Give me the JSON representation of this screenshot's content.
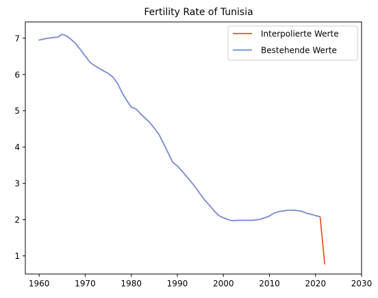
{
  "chart_data": {
    "type": "line",
    "title": "Fertility Rate of Tunisia",
    "xlabel": "",
    "ylabel": "",
    "xlim": [
      1957.0,
      2030.0
    ],
    "ylim": [
      0.5,
      7.45
    ],
    "xticks": [
      1960,
      1970,
      1980,
      1990,
      2000,
      2010,
      2020,
      2030
    ],
    "yticks": [
      1,
      2,
      3,
      4,
      5,
      6,
      7
    ],
    "grid": false,
    "legend_position": "top-right",
    "series": [
      {
        "name": "Interpolierte Werte",
        "color": "#e8501e",
        "x": [
          1960,
          1961,
          1962,
          1963,
          1964,
          1965,
          1966,
          1967,
          1968,
          1969,
          1970,
          1971,
          1972,
          1973,
          1974,
          1975,
          1976,
          1977,
          1978,
          1979,
          1980,
          1981,
          1982,
          1983,
          1984,
          1985,
          1986,
          1987,
          1988,
          1989,
          1990,
          1991,
          1992,
          1993,
          1994,
          1995,
          1996,
          1997,
          1998,
          1999,
          2000,
          2001,
          2002,
          2003,
          2004,
          2005,
          2006,
          2007,
          2008,
          2009,
          2010,
          2011,
          2012,
          2013,
          2014,
          2015,
          2016,
          2017,
          2018,
          2019,
          2020,
          2021,
          2022
        ],
        "y": [
          6.95,
          6.98,
          7.0,
          7.02,
          7.03,
          7.11,
          7.06,
          6.96,
          6.84,
          6.68,
          6.51,
          6.34,
          6.25,
          6.17,
          6.1,
          6.03,
          5.93,
          5.76,
          5.5,
          5.29,
          5.1,
          5.05,
          4.92,
          4.8,
          4.68,
          4.52,
          4.35,
          4.1,
          3.84,
          3.58,
          3.48,
          3.34,
          3.19,
          3.04,
          2.88,
          2.7,
          2.53,
          2.39,
          2.24,
          2.11,
          2.05,
          2.0,
          1.97,
          1.98,
          1.98,
          1.98,
          1.98,
          1.99,
          2.01,
          2.05,
          2.1,
          2.18,
          2.22,
          2.24,
          2.26,
          2.26,
          2.25,
          2.23,
          2.18,
          2.15,
          2.11,
          2.08,
          0.78
        ]
      },
      {
        "name": "Bestehende Werte",
        "color": "#6f91dc",
        "x": [
          1960,
          1961,
          1962,
          1963,
          1964,
          1965,
          1966,
          1967,
          1968,
          1969,
          1970,
          1971,
          1972,
          1973,
          1974,
          1975,
          1976,
          1977,
          1978,
          1979,
          1980,
          1981,
          1982,
          1983,
          1984,
          1985,
          1986,
          1987,
          1988,
          1989,
          1990,
          1991,
          1992,
          1993,
          1994,
          1995,
          1996,
          1997,
          1998,
          1999,
          2000,
          2001,
          2002,
          2003,
          2004,
          2005,
          2006,
          2007,
          2008,
          2009,
          2010,
          2011,
          2012,
          2013,
          2014,
          2015,
          2016,
          2017,
          2018,
          2019,
          2020,
          2021
        ],
        "y": [
          6.95,
          6.98,
          7.0,
          7.02,
          7.03,
          7.11,
          7.06,
          6.96,
          6.84,
          6.68,
          6.51,
          6.34,
          6.25,
          6.17,
          6.1,
          6.03,
          5.93,
          5.76,
          5.5,
          5.29,
          5.1,
          5.05,
          4.92,
          4.8,
          4.68,
          4.52,
          4.35,
          4.1,
          3.84,
          3.58,
          3.48,
          3.34,
          3.19,
          3.04,
          2.88,
          2.7,
          2.53,
          2.39,
          2.24,
          2.11,
          2.05,
          2.0,
          1.97,
          1.98,
          1.98,
          1.98,
          1.98,
          1.99,
          2.01,
          2.05,
          2.1,
          2.18,
          2.22,
          2.24,
          2.26,
          2.26,
          2.25,
          2.23,
          2.18,
          2.15,
          2.11,
          2.08
        ]
      }
    ]
  }
}
